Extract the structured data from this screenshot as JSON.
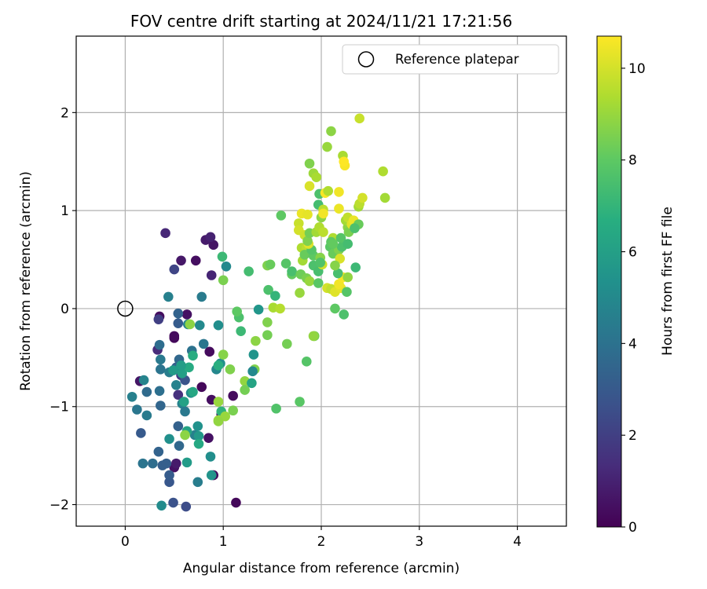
{
  "chart_data": {
    "type": "scatter",
    "title": "FOV centre drift starting at 2024/11/21 17:21:56",
    "xlabel": "Angular distance from reference (arcmin)",
    "ylabel": "Rotation from reference (arcmin)",
    "xlim": [
      -0.5,
      4.5
    ],
    "ylim": [
      -2.22,
      2.78
    ],
    "xticks": [
      0,
      1,
      2,
      3,
      4
    ],
    "xtick_labels": [
      "0",
      "1",
      "2",
      "3",
      "4"
    ],
    "yticks": [
      -2,
      -1,
      0,
      1,
      2
    ],
    "ytick_labels": [
      "−2",
      "−1",
      "0",
      "1",
      "2"
    ],
    "grid": true,
    "legend_position": "top-right",
    "legend": [
      {
        "label": "Reference platepar",
        "marker": "open-circle"
      }
    ],
    "reference_point": {
      "x": 0,
      "y": 0
    },
    "colormap": "viridis",
    "colorbar": {
      "label": "Hours from first FF file",
      "range": [
        0,
        10.7
      ],
      "ticks": [
        0,
        2,
        4,
        6,
        8,
        10
      ],
      "tick_labels": [
        "0",
        "2",
        "4",
        "6",
        "8",
        "10"
      ]
    },
    "points": [
      {
        "x": 1.13,
        "y": -1.98,
        "c": 0.2
      },
      {
        "x": 0.9,
        "y": -1.7,
        "c": 0.3
      },
      {
        "x": 0.5,
        "y": -1.62,
        "c": 0.5
      },
      {
        "x": 0.52,
        "y": -1.58,
        "c": 0.8
      },
      {
        "x": 0.85,
        "y": -1.32,
        "c": 0.5
      },
      {
        "x": 0.98,
        "y": -1.08,
        "c": 0.6
      },
      {
        "x": 0.88,
        "y": -0.93,
        "c": 0.4
      },
      {
        "x": 1.1,
        "y": -0.89,
        "c": 0.3
      },
      {
        "x": 0.78,
        "y": -0.8,
        "c": 0.2
      },
      {
        "x": 0.86,
        "y": -0.44,
        "c": 0.3
      },
      {
        "x": 0.5,
        "y": -0.3,
        "c": 0.2
      },
      {
        "x": 0.5,
        "y": -0.28,
        "c": 0.3
      },
      {
        "x": 0.35,
        "y": -0.08,
        "c": 0.4
      },
      {
        "x": 0.63,
        "y": -0.06,
        "c": 0.5
      },
      {
        "x": 0.15,
        "y": -0.74,
        "c": 0.6
      },
      {
        "x": 0.57,
        "y": 0.49,
        "c": 0.7
      },
      {
        "x": 0.72,
        "y": 0.49,
        "c": 0.4
      },
      {
        "x": 0.9,
        "y": 0.65,
        "c": 0.6
      },
      {
        "x": 0.82,
        "y": 0.7,
        "c": 0.8
      },
      {
        "x": 0.87,
        "y": 0.73,
        "c": 1.0
      },
      {
        "x": 0.41,
        "y": 0.77,
        "c": 1.2
      },
      {
        "x": 0.88,
        "y": 0.34,
        "c": 1.1
      },
      {
        "x": 0.33,
        "y": -0.42,
        "c": 1.3
      },
      {
        "x": 0.54,
        "y": -0.88,
        "c": 1.5
      },
      {
        "x": 0.57,
        "y": -0.68,
        "c": 1.8
      },
      {
        "x": 0.34,
        "y": -0.11,
        "c": 2.0
      },
      {
        "x": 0.5,
        "y": 0.4,
        "c": 2.2
      },
      {
        "x": 0.62,
        "y": -2.02,
        "c": 2.5
      },
      {
        "x": 0.49,
        "y": -1.98,
        "c": 2.7
      },
      {
        "x": 0.45,
        "y": -1.77,
        "c": 2.9
      },
      {
        "x": 0.45,
        "y": -1.7,
        "c": 3.1
      },
      {
        "x": 0.38,
        "y": -1.6,
        "c": 3.2
      },
      {
        "x": 0.34,
        "y": -1.46,
        "c": 3.4
      },
      {
        "x": 0.55,
        "y": -1.4,
        "c": 3.6
      },
      {
        "x": 0.16,
        "y": -1.27,
        "c": 3.0
      },
      {
        "x": 0.54,
        "y": -1.2,
        "c": 3.3
      },
      {
        "x": 0.36,
        "y": -0.99,
        "c": 3.5
      },
      {
        "x": 0.22,
        "y": -0.85,
        "c": 3.7
      },
      {
        "x": 0.35,
        "y": -0.84,
        "c": 3.9
      },
      {
        "x": 0.36,
        "y": -0.62,
        "c": 4.1
      },
      {
        "x": 0.36,
        "y": -0.52,
        "c": 4.3
      },
      {
        "x": 0.45,
        "y": -0.65,
        "c": 4.5
      },
      {
        "x": 0.52,
        "y": -0.78,
        "c": 4.7
      },
      {
        "x": 0.61,
        "y": -0.73,
        "c": 2.8
      },
      {
        "x": 0.52,
        "y": -0.6,
        "c": 3.2
      },
      {
        "x": 0.55,
        "y": -0.52,
        "c": 3.6
      },
      {
        "x": 0.35,
        "y": -0.37,
        "c": 3.8
      },
      {
        "x": 0.68,
        "y": -0.43,
        "c": 4.0
      },
      {
        "x": 0.8,
        "y": -0.36,
        "c": 4.2
      },
      {
        "x": 0.78,
        "y": 0.12,
        "c": 4.4
      },
      {
        "x": 0.44,
        "y": 0.12,
        "c": 4.6
      },
      {
        "x": 0.54,
        "y": -0.15,
        "c": 3.1
      },
      {
        "x": 0.54,
        "y": -0.05,
        "c": 3.4
      },
      {
        "x": 0.64,
        "y": -0.16,
        "c": 4.8
      },
      {
        "x": 0.76,
        "y": -0.17,
        "c": 5.0
      },
      {
        "x": 0.95,
        "y": -0.17,
        "c": 5.2
      },
      {
        "x": 1.03,
        "y": 0.43,
        "c": 5.0
      },
      {
        "x": 0.93,
        "y": -0.62,
        "c": 4.9
      },
      {
        "x": 0.97,
        "y": -0.56,
        "c": 5.3
      },
      {
        "x": 0.67,
        "y": -0.86,
        "c": 5.1
      },
      {
        "x": 0.58,
        "y": -0.97,
        "c": 4.7
      },
      {
        "x": 0.61,
        "y": -1.05,
        "c": 4.3
      },
      {
        "x": 0.71,
        "y": -1.29,
        "c": 4.6
      },
      {
        "x": 0.87,
        "y": -1.51,
        "c": 5.2
      },
      {
        "x": 0.88,
        "y": -1.7,
        "c": 5.5
      },
      {
        "x": 0.74,
        "y": -1.77,
        "c": 4.5
      },
      {
        "x": 0.75,
        "y": -1.3,
        "c": 5.7
      },
      {
        "x": 0.74,
        "y": -1.2,
        "c": 5.4
      },
      {
        "x": 0.18,
        "y": -1.58,
        "c": 4.1
      },
      {
        "x": 0.28,
        "y": -1.58,
        "c": 3.8
      },
      {
        "x": 0.12,
        "y": -1.03,
        "c": 4.2
      },
      {
        "x": 0.22,
        "y": -1.09,
        "c": 4.4
      },
      {
        "x": 0.07,
        "y": -0.9,
        "c": 4.6
      },
      {
        "x": 0.19,
        "y": -0.73,
        "c": 4.8
      },
      {
        "x": 0.37,
        "y": -2.01,
        "c": 5.1
      },
      {
        "x": 0.45,
        "y": -1.33,
        "c": 5.3
      },
      {
        "x": 0.42,
        "y": -1.58,
        "c": 3.2
      },
      {
        "x": 0.63,
        "y": -1.57,
        "c": 5.8
      },
      {
        "x": 0.75,
        "y": -1.38,
        "c": 6.4
      },
      {
        "x": 0.63,
        "y": -1.25,
        "c": 6.2
      },
      {
        "x": 0.69,
        "y": -0.85,
        "c": 6.3
      },
      {
        "x": 0.6,
        "y": -0.95,
        "c": 6.1
      },
      {
        "x": 0.58,
        "y": -0.66,
        "c": 6.0
      },
      {
        "x": 0.65,
        "y": -0.6,
        "c": 6.5
      },
      {
        "x": 0.57,
        "y": -0.58,
        "c": 5.9
      },
      {
        "x": 0.49,
        "y": -0.63,
        "c": 5.8
      },
      {
        "x": 0.69,
        "y": -0.48,
        "c": 6.6
      },
      {
        "x": 0.95,
        "y": -0.58,
        "c": 6.7
      },
      {
        "x": 0.98,
        "y": -1.05,
        "c": 6.9
      },
      {
        "x": 0.95,
        "y": -0.95,
        "c": 9.0
      },
      {
        "x": 0.95,
        "y": -1.14,
        "c": 9.2
      },
      {
        "x": 1.02,
        "y": -1.1,
        "c": 9.0
      },
      {
        "x": 0.95,
        "y": -1.15,
        "c": 8.9
      },
      {
        "x": 0.61,
        "y": -1.29,
        "c": 8.8
      },
      {
        "x": 1.1,
        "y": -1.04,
        "c": 8.5
      },
      {
        "x": 1.07,
        "y": -0.62,
        "c": 8.6
      },
      {
        "x": 1.0,
        "y": -0.47,
        "c": 8.7
      },
      {
        "x": 0.66,
        "y": -0.16,
        "c": 8.8
      },
      {
        "x": 1.0,
        "y": 0.29,
        "c": 8.5
      },
      {
        "x": 0.99,
        "y": 0.53,
        "c": 7.2
      },
      {
        "x": 1.22,
        "y": -0.74,
        "c": 8.9
      },
      {
        "x": 1.22,
        "y": -0.83,
        "c": 8.4
      },
      {
        "x": 1.29,
        "y": -0.76,
        "c": 6.2
      },
      {
        "x": 1.32,
        "y": -0.62,
        "c": 8.6
      },
      {
        "x": 1.3,
        "y": -0.64,
        "c": 5.0
      },
      {
        "x": 1.33,
        "y": -0.33,
        "c": 8.8
      },
      {
        "x": 1.31,
        "y": -0.47,
        "c": 5.5
      },
      {
        "x": 1.36,
        "y": -0.01,
        "c": 5.6
      },
      {
        "x": 1.16,
        "y": -0.09,
        "c": 7.6
      },
      {
        "x": 1.18,
        "y": -0.23,
        "c": 7.2
      },
      {
        "x": 1.14,
        "y": -0.03,
        "c": 8.0
      },
      {
        "x": 1.26,
        "y": 0.38,
        "c": 7.4
      },
      {
        "x": 1.45,
        "y": 0.44,
        "c": 8.6
      },
      {
        "x": 1.48,
        "y": 0.45,
        "c": 8.2
      },
      {
        "x": 1.46,
        "y": 0.19,
        "c": 7.6
      },
      {
        "x": 1.53,
        "y": 0.13,
        "c": 7.0
      },
      {
        "x": 1.45,
        "y": -0.14,
        "c": 8.6
      },
      {
        "x": 1.45,
        "y": -0.27,
        "c": 8.4
      },
      {
        "x": 1.51,
        "y": 0.01,
        "c": 9.3
      },
      {
        "x": 1.58,
        "y": 0.0,
        "c": 9.5
      },
      {
        "x": 1.54,
        "y": -1.02,
        "c": 7.7
      },
      {
        "x": 1.59,
        "y": 0.95,
        "c": 8.0
      },
      {
        "x": 1.64,
        "y": 0.46,
        "c": 7.8
      },
      {
        "x": 1.7,
        "y": 0.35,
        "c": 8.1
      },
      {
        "x": 1.7,
        "y": 0.38,
        "c": 7.5
      },
      {
        "x": 1.65,
        "y": -0.36,
        "c": 8.4
      },
      {
        "x": 1.78,
        "y": -0.95,
        "c": 7.9
      },
      {
        "x": 1.85,
        "y": -0.54,
        "c": 7.8
      },
      {
        "x": 1.78,
        "y": 0.16,
        "c": 9.0
      },
      {
        "x": 1.81,
        "y": 0.49,
        "c": 9.2
      },
      {
        "x": 1.8,
        "y": 0.62,
        "c": 9.4
      },
      {
        "x": 1.85,
        "y": 0.62,
        "c": 9.6
      },
      {
        "x": 1.79,
        "y": 0.35,
        "c": 8.3
      },
      {
        "x": 1.85,
        "y": 0.31,
        "c": 8.5
      },
      {
        "x": 1.88,
        "y": 0.28,
        "c": 9.0
      },
      {
        "x": 1.83,
        "y": 0.55,
        "c": 8.2
      },
      {
        "x": 1.92,
        "y": 0.54,
        "c": 8.0
      },
      {
        "x": 1.9,
        "y": 0.6,
        "c": 7.8
      },
      {
        "x": 1.92,
        "y": 0.44,
        "c": 7.6
      },
      {
        "x": 1.97,
        "y": 0.38,
        "c": 7.5
      },
      {
        "x": 1.97,
        "y": 0.26,
        "c": 7.9
      },
      {
        "x": 1.93,
        "y": -0.28,
        "c": 8.4
      },
      {
        "x": 1.92,
        "y": -0.28,
        "c": 8.9
      },
      {
        "x": 1.77,
        "y": 0.87,
        "c": 9.8
      },
      {
        "x": 1.77,
        "y": 0.8,
        "c": 10.0
      },
      {
        "x": 1.83,
        "y": 0.75,
        "c": 9.9
      },
      {
        "x": 1.87,
        "y": 0.66,
        "c": 10.2
      },
      {
        "x": 1.86,
        "y": 0.69,
        "c": 8.6
      },
      {
        "x": 1.88,
        "y": 0.77,
        "c": 8.4
      },
      {
        "x": 1.95,
        "y": 0.78,
        "c": 9.2
      },
      {
        "x": 1.98,
        "y": 0.83,
        "c": 9.4
      },
      {
        "x": 2.02,
        "y": 0.78,
        "c": 9.6
      },
      {
        "x": 2.0,
        "y": 0.93,
        "c": 8.8
      },
      {
        "x": 1.97,
        "y": 1.06,
        "c": 7.4
      },
      {
        "x": 1.98,
        "y": 1.17,
        "c": 7.6
      },
      {
        "x": 1.99,
        "y": 0.52,
        "c": 8.7
      },
      {
        "x": 1.92,
        "y": 1.38,
        "c": 9.1
      },
      {
        "x": 1.95,
        "y": 1.34,
        "c": 9.3
      },
      {
        "x": 1.88,
        "y": 1.48,
        "c": 8.6
      },
      {
        "x": 1.88,
        "y": 1.25,
        "c": 10.1
      },
      {
        "x": 1.8,
        "y": 0.97,
        "c": 10.4
      },
      {
        "x": 1.86,
        "y": 0.96,
        "c": 10.3
      },
      {
        "x": 2.02,
        "y": 1.01,
        "c": 9.6
      },
      {
        "x": 2.02,
        "y": 0.97,
        "c": 10.5
      },
      {
        "x": 2.04,
        "y": 1.18,
        "c": 10.6
      },
      {
        "x": 2.06,
        "y": 1.65,
        "c": 9.0
      },
      {
        "x": 2.1,
        "y": 1.81,
        "c": 8.8
      },
      {
        "x": 2.07,
        "y": 1.2,
        "c": 9.4
      },
      {
        "x": 2.01,
        "y": 0.45,
        "c": 9.9
      },
      {
        "x": 2.06,
        "y": 0.21,
        "c": 10.0
      },
      {
        "x": 2.1,
        "y": 0.2,
        "c": 9.7
      },
      {
        "x": 2.14,
        "y": 0.17,
        "c": 10.2
      },
      {
        "x": 2.2,
        "y": 0.21,
        "c": 10.3
      },
      {
        "x": 2.18,
        "y": 0.25,
        "c": 10.5
      },
      {
        "x": 2.22,
        "y": 0.32,
        "c": 10.6
      },
      {
        "x": 2.17,
        "y": 0.36,
        "c": 7.5
      },
      {
        "x": 2.09,
        "y": 0.63,
        "c": 7.9
      },
      {
        "x": 2.12,
        "y": 0.72,
        "c": 9.4
      },
      {
        "x": 2.12,
        "y": 0.56,
        "c": 8.2
      },
      {
        "x": 2.1,
        "y": 0.68,
        "c": 8.0
      },
      {
        "x": 2.18,
        "y": 0.6,
        "c": 8.6
      },
      {
        "x": 2.21,
        "y": 0.63,
        "c": 7.6
      },
      {
        "x": 2.2,
        "y": 0.72,
        "c": 7.8
      },
      {
        "x": 2.18,
        "y": 1.02,
        "c": 10.4
      },
      {
        "x": 2.18,
        "y": 1.19,
        "c": 10.5
      },
      {
        "x": 2.19,
        "y": 0.51,
        "c": 10.1
      },
      {
        "x": 2.22,
        "y": 1.56,
        "c": 9.3
      },
      {
        "x": 2.24,
        "y": 1.46,
        "c": 10.6
      },
      {
        "x": 2.23,
        "y": 1.5,
        "c": 10.7
      },
      {
        "x": 2.27,
        "y": 0.83,
        "c": 8.8
      },
      {
        "x": 2.25,
        "y": 0.9,
        "c": 9.2
      },
      {
        "x": 2.27,
        "y": 0.93,
        "c": 9.7
      },
      {
        "x": 2.28,
        "y": 0.78,
        "c": 8.5
      },
      {
        "x": 2.31,
        "y": 0.86,
        "c": 10.2
      },
      {
        "x": 2.33,
        "y": 0.9,
        "c": 10.4
      },
      {
        "x": 2.38,
        "y": 0.86,
        "c": 8.2
      },
      {
        "x": 2.34,
        "y": 0.82,
        "c": 7.6
      },
      {
        "x": 2.27,
        "y": 0.66,
        "c": 7.4
      },
      {
        "x": 2.26,
        "y": 0.17,
        "c": 7.8
      },
      {
        "x": 2.23,
        "y": -0.06,
        "c": 7.6
      },
      {
        "x": 2.14,
        "y": 0.0,
        "c": 8.0
      },
      {
        "x": 2.35,
        "y": 0.42,
        "c": 7.2
      },
      {
        "x": 2.38,
        "y": 1.04,
        "c": 9.2
      },
      {
        "x": 2.39,
        "y": 1.07,
        "c": 9.6
      },
      {
        "x": 2.42,
        "y": 1.13,
        "c": 10.0
      },
      {
        "x": 2.39,
        "y": 1.94,
        "c": 9.8
      },
      {
        "x": 2.63,
        "y": 1.4,
        "c": 9.4
      },
      {
        "x": 2.65,
        "y": 1.13,
        "c": 9.2
      },
      {
        "x": 2.12,
        "y": 0.66,
        "c": 8.1
      },
      {
        "x": 2.14,
        "y": 0.44,
        "c": 8.7
      },
      {
        "x": 2.27,
        "y": 0.32,
        "c": 8.9
      },
      {
        "x": 1.99,
        "y": 0.47,
        "c": 7.7
      }
    ]
  }
}
